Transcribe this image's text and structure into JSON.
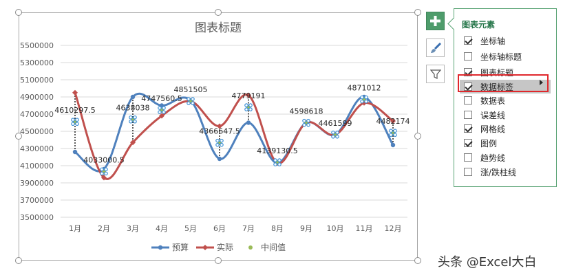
{
  "chart_data": {
    "type": "line",
    "title": "图表标题",
    "categories": [
      "1月",
      "2月",
      "3月",
      "4月",
      "5月",
      "6月",
      "7月",
      "8月",
      "9月",
      "10月",
      "11月",
      "12月"
    ],
    "y_ticks": [
      "5500000",
      "5300000",
      "5100000",
      "4900000",
      "4700000",
      "4500000",
      "4300000",
      "4100000",
      "3900000",
      "3700000",
      "3500000"
    ],
    "ylim": [
      3500000,
      5500000
    ],
    "grid": true,
    "legend_position": "bottom",
    "series": [
      {
        "name": "预算",
        "color": "#4f81bd",
        "values": [
          4260000,
          4060000,
          4900000,
          4800000,
          4860000,
          4180000,
          4600000,
          4130000,
          4600000,
          4460000,
          4900000,
          4340000
        ]
      },
      {
        "name": "实际",
        "color": "#c0504d",
        "values": [
          4950000,
          3960000,
          4370000,
          4680000,
          4850000,
          4560000,
          4920000,
          4130000,
          4600000,
          4460000,
          4830000,
          4620000
        ]
      },
      {
        "name": "中间值",
        "color": "#9bbb59",
        "values": [
          4610297.5,
          4033000.5,
          4638038,
          4747560.5,
          4851505,
          4366647.5,
          4779191,
          4139130.5,
          4598618,
          4461599,
          4871012,
          4482174
        ]
      }
    ],
    "data_labels": [
      "4610297.5",
      "4033000.5",
      "4638038",
      "4747560.5",
      "4851505",
      "4366647.5",
      "4779191",
      "4139130.5",
      "4598618",
      "4461599",
      "4871012",
      "4482174"
    ]
  },
  "panel": {
    "title": "图表元素",
    "items": [
      {
        "label": "坐标轴",
        "checked": true
      },
      {
        "label": "坐标轴标题",
        "checked": false
      },
      {
        "label": "图表标题",
        "checked": true
      },
      {
        "label": "数据标签",
        "checked": true
      },
      {
        "label": "数据表",
        "checked": false
      },
      {
        "label": "误差线",
        "checked": false
      },
      {
        "label": "网格线",
        "checked": true
      },
      {
        "label": "图例",
        "checked": true
      },
      {
        "label": "趋势线",
        "checked": false
      },
      {
        "label": "涨/跌柱线",
        "checked": false
      }
    ]
  },
  "side_buttons": [
    {
      "icon": "plus-icon"
    },
    {
      "icon": "brush-icon"
    },
    {
      "icon": "filter-icon"
    }
  ],
  "watermark": "头条 @Excel大白"
}
